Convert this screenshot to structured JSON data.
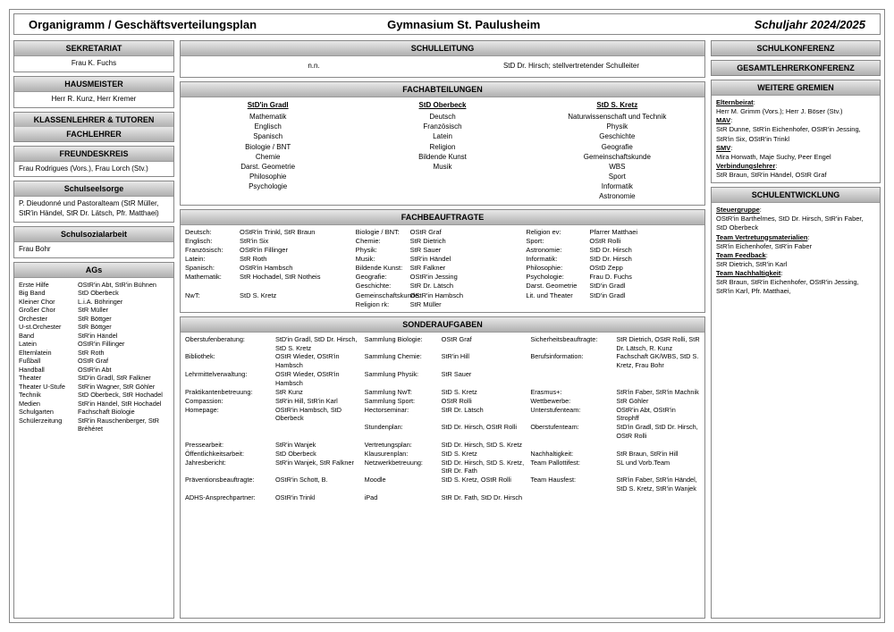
{
  "title": {
    "main": "Organigramm / Geschäftsverteilungsplan",
    "school": "Gymnasium St. Paulusheim",
    "year": "Schuljahr 2024/2025"
  },
  "left": {
    "sekretariat": {
      "hdr": "SEKRETARIAT",
      "body": "Frau K. Fuchs"
    },
    "hausmeister": {
      "hdr": "HAUSMEISTER",
      "body": "Herr R. Kunz, Herr Kremer"
    },
    "klassenlehrer": {
      "hdr1": "KLASSENLEHRER & TUTOREN",
      "hdr2": "FACHLEHRER"
    },
    "freundeskreis": {
      "hdr": "FREUNDESKREIS",
      "body": "Frau Rodrigues (Vors.), Frau Lorch (Stv.)"
    },
    "seelsorge": {
      "hdr": "Schulseelsorge",
      "body": "P. Dieudonné und Pastoralteam (StR Müller, StR'in Händel, StR Dr. Lätsch, Pfr. Matthaei)"
    },
    "sozialarbeit": {
      "hdr": "Schulsozialarbeit",
      "body": "Frau Bohr"
    },
    "ags": {
      "hdr": "AGs",
      "rows": [
        [
          "Erste Hilfe",
          "OStR'in Abt, StR'in Bühnen"
        ],
        [
          "Big Band",
          "StD Oberbeck"
        ],
        [
          "Kleiner Chor",
          "L.i.A. Böhringer"
        ],
        [
          "Großer Chor",
          "StR Müller"
        ],
        [
          "Orchester",
          "StR Böttger"
        ],
        [
          "U-st.Orchester",
          "StR Böttger"
        ],
        [
          "Band",
          "StR'in Händel"
        ],
        [
          "Latein",
          "OStR'in Fillinger"
        ],
        [
          "Elternlatein",
          "StR Roth"
        ],
        [
          "Fußball",
          "OStR Graf"
        ],
        [
          "Handball",
          "OStR'in Abt"
        ],
        [
          "Theater",
          "StD'in Gradl, StR Falkner"
        ],
        [
          "Theater U-Stufe",
          "StR'in Wagner, StR Göhler"
        ],
        [
          "Technik",
          "StD Oberbeck, StR Hochadel"
        ],
        [
          "Medien",
          "StR'in Händel, StR Hochadel"
        ],
        [
          "Schulgarten",
          "Fachschaft Biologie"
        ],
        [
          "Schülerzeitung",
          "StR'in Rauschenberger, StR Bréhéret"
        ]
      ]
    }
  },
  "center": {
    "schulleitung": {
      "hdr": "SCHULLEITUNG",
      "left": "n.n.",
      "right": "StD Dr. Hirsch; stellvertretender Schulleiter"
    },
    "fachabteilungen": {
      "hdr": "FACHABTEILUNGEN",
      "cols": [
        {
          "head": "StD'in Gradl",
          "items": [
            "Mathematik",
            "Englisch",
            "Spanisch",
            "Biologie / BNT",
            "Chemie",
            "Darst. Geometrie",
            "Philosophie",
            "Psychologie"
          ]
        },
        {
          "head": "StD Oberbeck",
          "items": [
            "Deutsch",
            "Französisch",
            "Latein",
            "Religion",
            "Bildende Kunst",
            "Musik"
          ]
        },
        {
          "head": "StD S. Kretz",
          "items": [
            "Naturwissenschaft und Technik",
            "Physik",
            "Geschichte",
            "Geografie",
            "Gemeinschaftskunde",
            "WBS",
            "Sport",
            "Informatik",
            "Astronomie"
          ]
        }
      ]
    },
    "fachbeauftragte": {
      "hdr": "FACHBEAUFTRAGTE",
      "rows": [
        [
          "Deutsch:",
          "OStR'in Trinkl, StR Braun",
          "Biologie / BNT:",
          "OStR Graf",
          "Religion ev:",
          "Pfarrer Matthaei"
        ],
        [
          "Englisch:",
          "StR'in Six",
          "Chemie:",
          "StR Dietrich",
          "Sport:",
          "OStR Rolli"
        ],
        [
          "Französisch:",
          "OStR'in Fillinger",
          "Physik:",
          "StR Sauer",
          "Astronomie:",
          "StD Dr. Hirsch"
        ],
        [
          "Latein:",
          "StR Roth",
          "Musik:",
          "StR'in Händel",
          "Informatik:",
          "StD Dr. Hirsch"
        ],
        [
          "Spanisch:",
          "OStR'in Hambsch",
          "Bildende Kunst:",
          "StR Falkner",
          "Philosophie:",
          "OStD Zepp"
        ],
        [
          "Mathematik:",
          "StR Hochadel, StR Notheis",
          "Geografie:",
          "OStR'in Jessing",
          "Psychologie:",
          "Frau D. Fuchs"
        ],
        [
          "",
          "",
          "Geschichte:",
          "StR Dr. Lätsch",
          "Darst. Geometrie",
          "StD'in Gradl"
        ],
        [
          "NwT:",
          "StD S. Kretz",
          "Gemeinschaftskunde:",
          "OStR'in Hambsch",
          "Lit. und Theater",
          "StD'in Gradl"
        ],
        [
          "",
          "",
          "Religion rk:",
          "StR Müller",
          "",
          ""
        ]
      ]
    },
    "sonderaufgaben": {
      "hdr": "SONDERAUFGABEN",
      "rows": [
        [
          "Oberstufenberatung:",
          "StD'in Gradl, StD Dr. Hirsch, StD S. Kretz",
          "Sammlung Biologie:",
          "OStR Graf",
          "Sicherheitsbeauftragte:",
          "StR Dietrich, OStR Rolli, StR Dr. Lätsch, R. Kunz"
        ],
        [
          "Bibliothek:",
          "OStR Wieder, OStR'in Hambsch",
          "Sammlung Chemie:",
          "StR'in Hill",
          "Berufsinformation:",
          "Fachschaft GK/WBS, StD S. Kretz, Frau Bohr"
        ],
        [
          "Lehrmittelverwaltung:",
          "OStR Wieder, OStR'in Hambsch",
          "Sammlung Physik:",
          "StR Sauer",
          "",
          ""
        ],
        [
          "Praktikantenbetreuung:",
          "StR Kunz",
          "Sammlung NwT:",
          "StD S. Kretz",
          "Erasmus+:",
          "StR'in Faber, StR'in Machnik"
        ],
        [
          "Compassion:",
          "StR'in Hill, StR'in Karl",
          "Sammlung Sport:",
          "OStR Rolli",
          "Wettbewerbe:",
          "StR Göhler"
        ],
        [
          "Homepage:",
          "OStR'in Hambsch, StD Oberbeck",
          "Hectorseminar:",
          "StR Dr. Lätsch",
          "Unterstufenteam:",
          "OStR'in Abt, OStR'in Strophff"
        ],
        [
          "",
          "",
          "Stundenplan:",
          "StD Dr. Hirsch, OStR Rolli",
          "Oberstufenteam:",
          "StD'in Gradl, StD Dr. Hirsch, OStR Rolli"
        ],
        [
          "Pressearbeit:",
          "StR'in Wanjek",
          "Vertretungsplan:",
          "StD Dr. Hirsch, StD S. Kretz",
          "",
          ""
        ],
        [
          "Öffentlichkeitsarbeit:",
          "StD Oberbeck",
          "Klausurenplan:",
          "StD S. Kretz",
          "Nachhaltigkeit:",
          "StR Braun, StR'in Hill"
        ],
        [
          "Jahresbericht:",
          "StR'in Wanjek, StR Falkner",
          "Netzwerkbetreuung:",
          "StD Dr. Hirsch, StD S. Kretz, StR Dr. Fath",
          "Team Pallottifest:",
          "SL und Vorb.Team"
        ],
        [
          "Präventionsbeauftragte:",
          "OStR'in Schott, B.",
          "Moodle",
          "StD S. Kretz, OStR Rolli",
          "Team Hausfest:",
          "StR'in Faber, StR'in Händel, StD S. Kretz, StR'in Wanjek"
        ],
        [
          "ADHS-Ansprechpartner:",
          "OStR'in Trinkl",
          "iPad",
          "StR Dr. Fath, StD Dr. Hirsch",
          "",
          ""
        ]
      ]
    }
  },
  "right": {
    "schulkonferenz": "SCHULKONFERENZ",
    "gesamtlehrer": "GESAMTLEHRERKONFERENZ",
    "gremien": {
      "hdr": "WEITERE GREMIEN",
      "elternbeirat_lbl": "Elternbeirat",
      "elternbeirat": "Herr M. Grimm (Vors.); Herr J. Böser (Stv.)",
      "mav_lbl": "MAV",
      "mav": "StR Dunne, StR'in Eichenhofer, OStR'in Jessing, StR'in Six, OStR'in Trinkl",
      "smv_lbl": "SMV",
      "smv": "Mira Horwath, Maje Suchy, Peer Engel",
      "verb_lbl": "Verbindungslehrer",
      "verb": "StR Braun, StR'in Händel, OStR Graf"
    },
    "schulentwicklung": {
      "hdr": "SCHULENTWICKLUNG",
      "steuer_lbl": "Steuergruppe",
      "steuer": "OStR'in Barthelmes, StD Dr. Hirsch, StR'in Faber, StD Oberbeck",
      "vertret_lbl": "Team Vertretungsmaterialien",
      "vertret": "StR'in Eichenhofer, StR'in Faber",
      "feedback_lbl": "Team Feedback",
      "feedback": "StR Dietrich, StR'in Karl",
      "nachh_lbl": "Team Nachhaltigkeit",
      "nachh": "StR Braun, StR'in Eichenhofer, OStR'in Jessing, StR'in Karl, Pfr. Matthaei,"
    }
  }
}
